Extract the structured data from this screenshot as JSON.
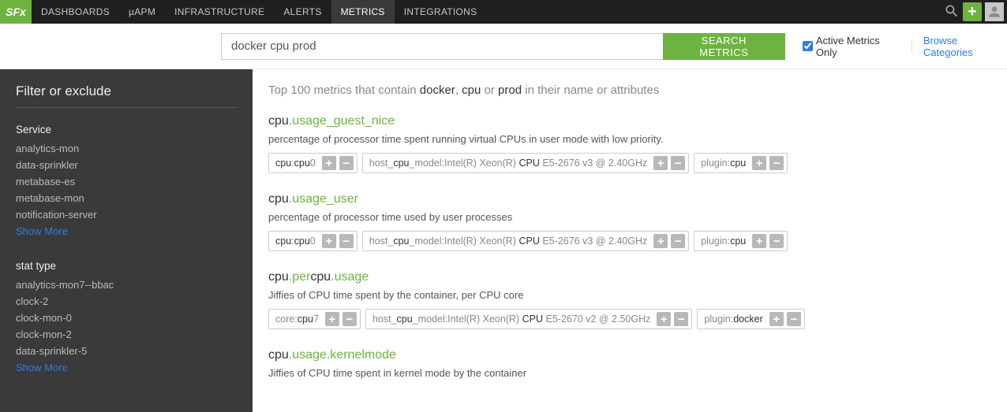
{
  "logo": "SFx",
  "nav": {
    "items": [
      "DASHBOARDS",
      "µAPM",
      "INFRASTRUCTURE",
      "ALERTS",
      "METRICS",
      "INTEGRATIONS"
    ],
    "active_index": 4
  },
  "search": {
    "value": "docker cpu prod",
    "button": "SEARCH METRICS",
    "active_only_label": "Active Metrics Only",
    "active_only_checked": true,
    "browse": "Browse Categories"
  },
  "sidebar": {
    "title": "Filter or exclude",
    "groups": [
      {
        "title": "Service",
        "items": [
          "analytics-mon",
          "data-sprinkler",
          "metabase-es",
          "metabase-mon",
          "notification-server"
        ],
        "show_more": "Show More"
      },
      {
        "title": "stat type",
        "items": [
          "analytics-mon7--bbac",
          "clock-2",
          "clock-mon-0",
          "clock-mon-2",
          "data-sprinkler-5"
        ],
        "show_more": "Show More"
      }
    ]
  },
  "results": {
    "header_pre": "Top 100 metrics that contain ",
    "header_terms": [
      "docker",
      "cpu",
      "prod"
    ],
    "header_post": " in their name or attributes",
    "metrics": [
      {
        "name_parts": [
          [
            "cpu",
            "plain"
          ],
          [
            ".",
            "green"
          ],
          [
            "usage_guest_nice",
            "green"
          ]
        ],
        "desc": "percentage of processor time spent running virtual CPUs in user mode with low priority.",
        "tags": [
          [
            [
              "cpu",
              "b"
            ],
            [
              ":",
              ""
            ],
            [
              "cpu",
              "b"
            ],
            [
              "0",
              ""
            ]
          ],
          [
            [
              "host_",
              ""
            ],
            [
              "cpu",
              "b"
            ],
            [
              "_model:Intel(R) Xeon(R) ",
              ""
            ],
            [
              "CPU",
              "b"
            ],
            [
              " E5-2676 v3 @ 2.40GHz",
              ""
            ]
          ],
          [
            [
              "plugin:",
              ""
            ],
            [
              "cpu",
              "b"
            ]
          ]
        ]
      },
      {
        "name_parts": [
          [
            "cpu",
            "plain"
          ],
          [
            ".",
            "green"
          ],
          [
            "usage_user",
            "green"
          ]
        ],
        "desc": "percentage of processor time used by user processes",
        "tags": [
          [
            [
              "cpu",
              "b"
            ],
            [
              ":",
              ""
            ],
            [
              "cpu",
              "b"
            ],
            [
              "0",
              ""
            ]
          ],
          [
            [
              "host_",
              ""
            ],
            [
              "cpu",
              "b"
            ],
            [
              "_model:Intel(R) Xeon(R) ",
              ""
            ],
            [
              "CPU",
              "b"
            ],
            [
              " E5-2676 v3 @ 2.40GHz",
              ""
            ]
          ],
          [
            [
              "plugin:",
              ""
            ],
            [
              "cpu",
              "b"
            ]
          ]
        ]
      },
      {
        "name_parts": [
          [
            "cpu",
            "plain"
          ],
          [
            ".",
            "green"
          ],
          [
            "per",
            "green"
          ],
          [
            "cpu",
            "plain"
          ],
          [
            ".",
            "green"
          ],
          [
            "usage",
            "green"
          ]
        ],
        "desc": "Jiffies of CPU time spent by the container, per CPU core",
        "tags": [
          [
            [
              "core:",
              ""
            ],
            [
              "cpu",
              "b"
            ],
            [
              "7",
              ""
            ]
          ],
          [
            [
              "host_",
              ""
            ],
            [
              "cpu",
              "b"
            ],
            [
              "_model:Intel(R) Xeon(R) ",
              ""
            ],
            [
              "CPU",
              "b"
            ],
            [
              " E5-2670 v2 @ 2.50GHz",
              ""
            ]
          ],
          [
            [
              "plugin:",
              ""
            ],
            [
              "docker",
              "b"
            ]
          ]
        ]
      },
      {
        "name_parts": [
          [
            "cpu",
            "plain"
          ],
          [
            ".",
            "green"
          ],
          [
            "usage.kernelmode",
            "green"
          ]
        ],
        "desc": "Jiffies of CPU time spent in kernel mode by the container",
        "tags": []
      }
    ]
  }
}
